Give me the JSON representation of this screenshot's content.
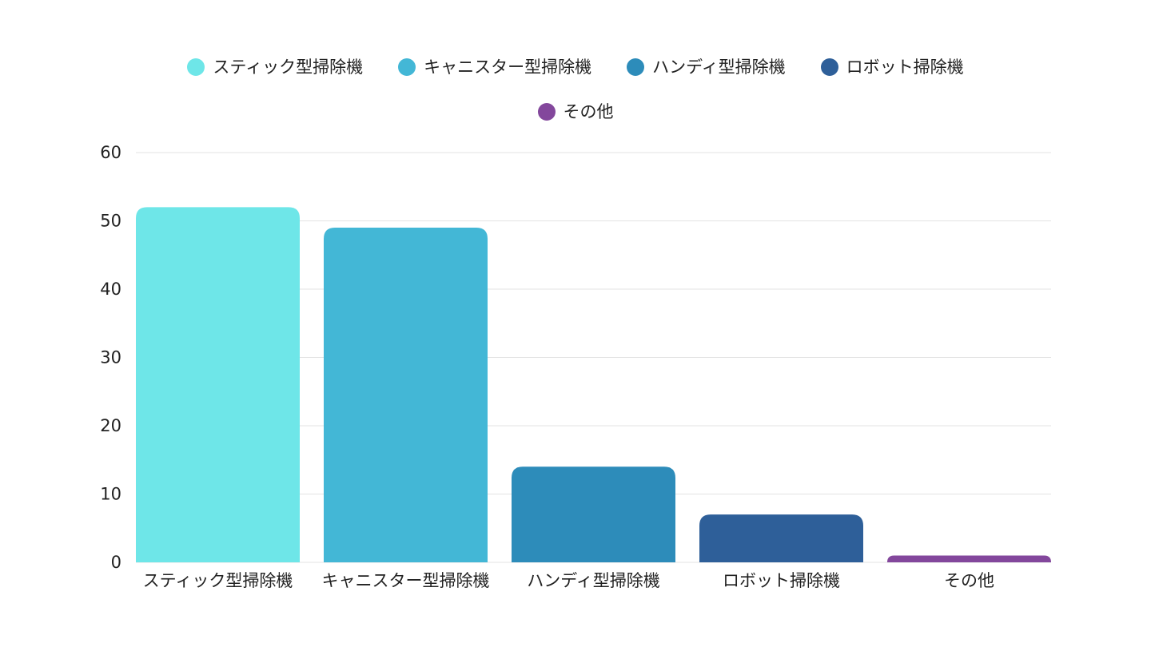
{
  "chart_data": {
    "type": "bar",
    "categories": [
      "スティック型掃除機",
      "キャニスター型掃除機",
      "ハンディ型掃除機",
      "ロボット掃除機",
      "その他"
    ],
    "values": [
      52,
      49,
      14,
      7,
      1
    ],
    "colors": [
      "#6ee6e8",
      "#43b7d6",
      "#2d8cba",
      "#2e5f99",
      "#83479c"
    ],
    "ylim": [
      0,
      60
    ],
    "yticks": [
      0,
      10,
      20,
      30,
      40,
      50,
      60
    ],
    "grid": true,
    "legend_placement": "top-center",
    "title": "",
    "xlabel": "",
    "ylabel": ""
  }
}
